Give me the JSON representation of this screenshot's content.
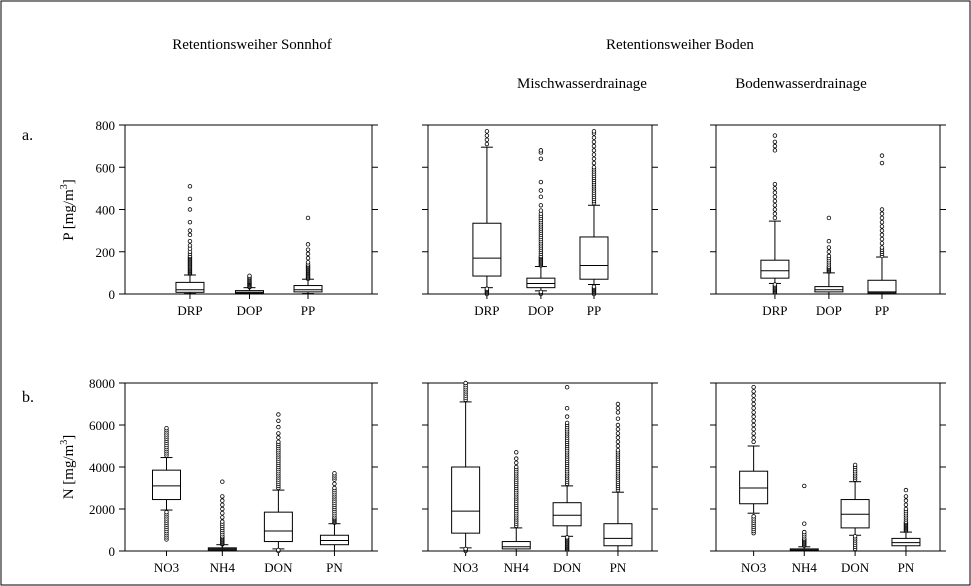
{
  "headers": {
    "col1": "Retentionsweiher Sonnhof",
    "col23": "Retentionsweiher Boden",
    "col2": "Mischwasserdrainage",
    "col3": "Bodenwasserdrainage"
  },
  "rows": {
    "a": {
      "label": "a.",
      "ylabel_main": "P [mg/m",
      "ylabel_sup": "3",
      "ylabel_end": "]"
    },
    "b": {
      "label": "b.",
      "ylabel_main": "N [mg/m",
      "ylabel_sup": "3",
      "ylabel_end": "]"
    }
  },
  "chart_data": [
    {
      "type": "box",
      "row": "a",
      "col": 1,
      "ylim": [
        0,
        800
      ],
      "yticks": [
        0,
        200,
        400,
        600,
        800
      ],
      "categories": [
        "DRP",
        "DOP",
        "PP"
      ],
      "boxes": [
        {
          "whislo": 2,
          "q1": 8,
          "med": 20,
          "q3": 55,
          "whishi": 90,
          "fliers": [
            95,
            100,
            105,
            110,
            115,
            120,
            125,
            130,
            135,
            140,
            145,
            150,
            155,
            160,
            165,
            170,
            175,
            180,
            190,
            200,
            215,
            230,
            250,
            280,
            300,
            340,
            400,
            450,
            510
          ]
        },
        {
          "whislo": 0,
          "q1": 4,
          "med": 8,
          "q3": 16,
          "whishi": 30,
          "fliers": [
            32,
            35,
            40,
            44,
            48,
            52,
            56,
            60,
            65,
            70,
            75,
            80,
            86
          ]
        },
        {
          "whislo": 2,
          "q1": 10,
          "med": 20,
          "q3": 40,
          "whishi": 70,
          "fliers": [
            72,
            76,
            80,
            85,
            90,
            95,
            100,
            105,
            110,
            115,
            120,
            125,
            130,
            135,
            140,
            150,
            170,
            190,
            210,
            235,
            360
          ]
        }
      ]
    },
    {
      "type": "box",
      "row": "a",
      "col": 2,
      "ylim": [
        0,
        800
      ],
      "yticks": [
        0,
        200,
        400,
        600,
        800
      ],
      "categories": [
        "DRP",
        "DOP",
        "PP"
      ],
      "boxes": [
        {
          "whislo": 30,
          "q1": 85,
          "med": 170,
          "q3": 335,
          "whishi": 695,
          "fliers": [
            0,
            5,
            10,
            15,
            20,
            25,
            710,
            730,
            750,
            770
          ]
        },
        {
          "whislo": 15,
          "q1": 30,
          "med": 50,
          "q3": 75,
          "whishi": 130,
          "fliers": [
            0,
            5,
            10,
            135,
            140,
            145,
            150,
            155,
            160,
            165,
            170,
            175,
            180,
            190,
            200,
            210,
            220,
            230,
            240,
            250,
            260,
            270,
            280,
            290,
            300,
            310,
            320,
            330,
            340,
            350,
            360,
            370,
            380,
            395,
            420,
            460,
            490,
            530,
            640,
            670,
            680
          ]
        },
        {
          "whislo": 45,
          "q1": 70,
          "med": 135,
          "q3": 270,
          "whishi": 420,
          "fliers": [
            0,
            5,
            10,
            15,
            20,
            25,
            30,
            35,
            430,
            440,
            450,
            460,
            470,
            480,
            490,
            500,
            510,
            520,
            530,
            540,
            550,
            560,
            570,
            580,
            590,
            600,
            620,
            640,
            660,
            680,
            700,
            720,
            740,
            760,
            770
          ]
        }
      ]
    },
    {
      "type": "box",
      "row": "a",
      "col": 3,
      "ylim": [
        0,
        800
      ],
      "yticks": [
        0,
        200,
        400,
        600,
        800
      ],
      "categories": [
        "DRP",
        "DOP",
        "PP"
      ],
      "boxes": [
        {
          "whislo": 50,
          "q1": 75,
          "med": 110,
          "q3": 160,
          "whishi": 345,
          "fliers": [
            5,
            10,
            15,
            20,
            25,
            30,
            35,
            40,
            45,
            360,
            380,
            400,
            420,
            440,
            460,
            480,
            500,
            520,
            680,
            700,
            720,
            750
          ]
        },
        {
          "whislo": 0,
          "q1": 10,
          "med": 20,
          "q3": 35,
          "whishi": 100,
          "fliers": [
            105,
            110,
            115,
            120,
            125,
            130,
            140,
            150,
            160,
            170,
            180,
            200,
            220,
            250,
            360
          ]
        },
        {
          "whislo": 0,
          "q1": 5,
          "med": 10,
          "q3": 65,
          "whishi": 175,
          "fliers": [
            180,
            190,
            200,
            210,
            220,
            240,
            260,
            280,
            300,
            320,
            340,
            360,
            380,
            400,
            620,
            655
          ]
        }
      ]
    },
    {
      "type": "box",
      "row": "b",
      "col": 1,
      "ylim": [
        0,
        8000
      ],
      "yticks": [
        0,
        2000,
        4000,
        6000,
        8000
      ],
      "categories": [
        "NO3",
        "NH4",
        "DON",
        "PN"
      ],
      "boxes": [
        {
          "whislo": 1950,
          "q1": 2450,
          "med": 3100,
          "q3": 3850,
          "whishi": 4450,
          "fliers": [
            550,
            650,
            750,
            850,
            950,
            1050,
            1150,
            1250,
            1350,
            1450,
            1550,
            1650,
            1750,
            1850,
            4550,
            4650,
            4750,
            4850,
            4950,
            5050,
            5150,
            5250,
            5350,
            5450,
            5550,
            5650,
            5750,
            5850
          ]
        },
        {
          "whislo": 0,
          "q1": 50,
          "med": 100,
          "q3": 150,
          "whishi": 300,
          "fliers": [
            320,
            350,
            400,
            450,
            500,
            550,
            600,
            650,
            700,
            800,
            900,
            1000,
            1100,
            1200,
            1300,
            1400,
            1600,
            1800,
            2000,
            2200,
            2400,
            2600,
            3300
          ]
        },
        {
          "whislo": 100,
          "q1": 450,
          "med": 950,
          "q3": 1850,
          "whishi": 2900,
          "fliers": [
            0,
            50,
            3000,
            3100,
            3200,
            3300,
            3400,
            3500,
            3600,
            3700,
            3800,
            3900,
            4000,
            4100,
            4200,
            4300,
            4400,
            4500,
            4600,
            4700,
            4800,
            4900,
            5000,
            5100,
            5200,
            5400,
            5600,
            5900,
            6200,
            6500
          ]
        },
        {
          "whislo": 0,
          "q1": 300,
          "med": 500,
          "q3": 750,
          "whishi": 1300,
          "fliers": [
            1350,
            1400,
            1450,
            1500,
            1550,
            1600,
            1700,
            1800,
            1900,
            2000,
            2100,
            2200,
            2300,
            2400,
            2500,
            2600,
            2700,
            2800,
            2900,
            3000,
            3200,
            3400,
            3500,
            3600,
            3700
          ]
        }
      ]
    },
    {
      "type": "box",
      "row": "b",
      "col": 2,
      "ylim": [
        0,
        8000
      ],
      "yticks": [
        0,
        2000,
        4000,
        6000,
        8000
      ],
      "categories": [
        "NO3",
        "NH4",
        "DON",
        "PN"
      ],
      "boxes": [
        {
          "whislo": 150,
          "q1": 850,
          "med": 1900,
          "q3": 4000,
          "whishi": 7100,
          "fliers": [
            0,
            50,
            100,
            7200,
            7300,
            7400,
            7500,
            7600,
            7700,
            7800,
            7900,
            8000
          ]
        },
        {
          "whislo": 0,
          "q1": 100,
          "med": 200,
          "q3": 450,
          "whishi": 1100,
          "fliers": [
            1200,
            1300,
            1400,
            1500,
            1600,
            1700,
            1800,
            1900,
            2000,
            2100,
            2200,
            2300,
            2400,
            2500,
            2600,
            2700,
            2800,
            2900,
            3000,
            3100,
            3200,
            3300,
            3400,
            3500,
            3600,
            3700,
            3800,
            3900,
            4000,
            4200,
            4400,
            4700
          ]
        },
        {
          "whislo": 700,
          "q1": 1200,
          "med": 1700,
          "q3": 2300,
          "whishi": 3100,
          "fliers": [
            50,
            100,
            150,
            200,
            250,
            300,
            350,
            400,
            450,
            500,
            550,
            600,
            650,
            3200,
            3300,
            3400,
            3500,
            3600,
            3700,
            3800,
            3900,
            4000,
            4100,
            4200,
            4300,
            4400,
            4500,
            4600,
            4700,
            4800,
            4900,
            5000,
            5100,
            5200,
            5300,
            5400,
            5500,
            5600,
            5700,
            5800,
            5900,
            6000,
            6100,
            6400,
            6800,
            7800
          ]
        },
        {
          "whislo": 0,
          "q1": 250,
          "med": 600,
          "q3": 1300,
          "whishi": 2800,
          "fliers": [
            2900,
            3000,
            3100,
            3200,
            3300,
            3400,
            3500,
            3600,
            3700,
            3800,
            3900,
            4000,
            4100,
            4200,
            4300,
            4400,
            4500,
            4600,
            4700,
            4800,
            5000,
            5200,
            5400,
            5600,
            5800,
            6000,
            6300,
            6600,
            6800,
            7000
          ]
        }
      ]
    },
    {
      "type": "box",
      "row": "b",
      "col": 3,
      "ylim": [
        0,
        8000
      ],
      "yticks": [
        0,
        2000,
        4000,
        6000,
        8000
      ],
      "categories": [
        "NO3",
        "NH4",
        "DON",
        "PN"
      ],
      "boxes": [
        {
          "whislo": 1800,
          "q1": 2250,
          "med": 3000,
          "q3": 3800,
          "whishi": 5000,
          "fliers": [
            850,
            950,
            1050,
            1150,
            1250,
            1350,
            1450,
            1550,
            1650,
            5200,
            5400,
            5600,
            5800,
            6000,
            6200,
            6400,
            6600,
            6800,
            7000,
            7200,
            7400,
            7600,
            7800
          ]
        },
        {
          "whislo": 0,
          "q1": 20,
          "med": 50,
          "q3": 100,
          "whishi": 200,
          "fliers": [
            250,
            300,
            350,
            400,
            450,
            500,
            550,
            600,
            700,
            800,
            900,
            1300,
            3100
          ]
        },
        {
          "whislo": 750,
          "q1": 1100,
          "med": 1750,
          "q3": 2450,
          "whishi": 3300,
          "fliers": [
            100,
            200,
            300,
            400,
            500,
            600,
            700,
            3400,
            3500,
            3600,
            3700,
            3800,
            3900,
            4000,
            4100
          ]
        },
        {
          "whislo": 0,
          "q1": 250,
          "med": 400,
          "q3": 600,
          "whishi": 900,
          "fliers": [
            950,
            1000,
            1050,
            1100,
            1150,
            1200,
            1250,
            1300,
            1350,
            1400,
            1500,
            1600,
            1700,
            1800,
            1900,
            2000,
            2200,
            2400,
            2600,
            2900
          ]
        }
      ]
    }
  ]
}
